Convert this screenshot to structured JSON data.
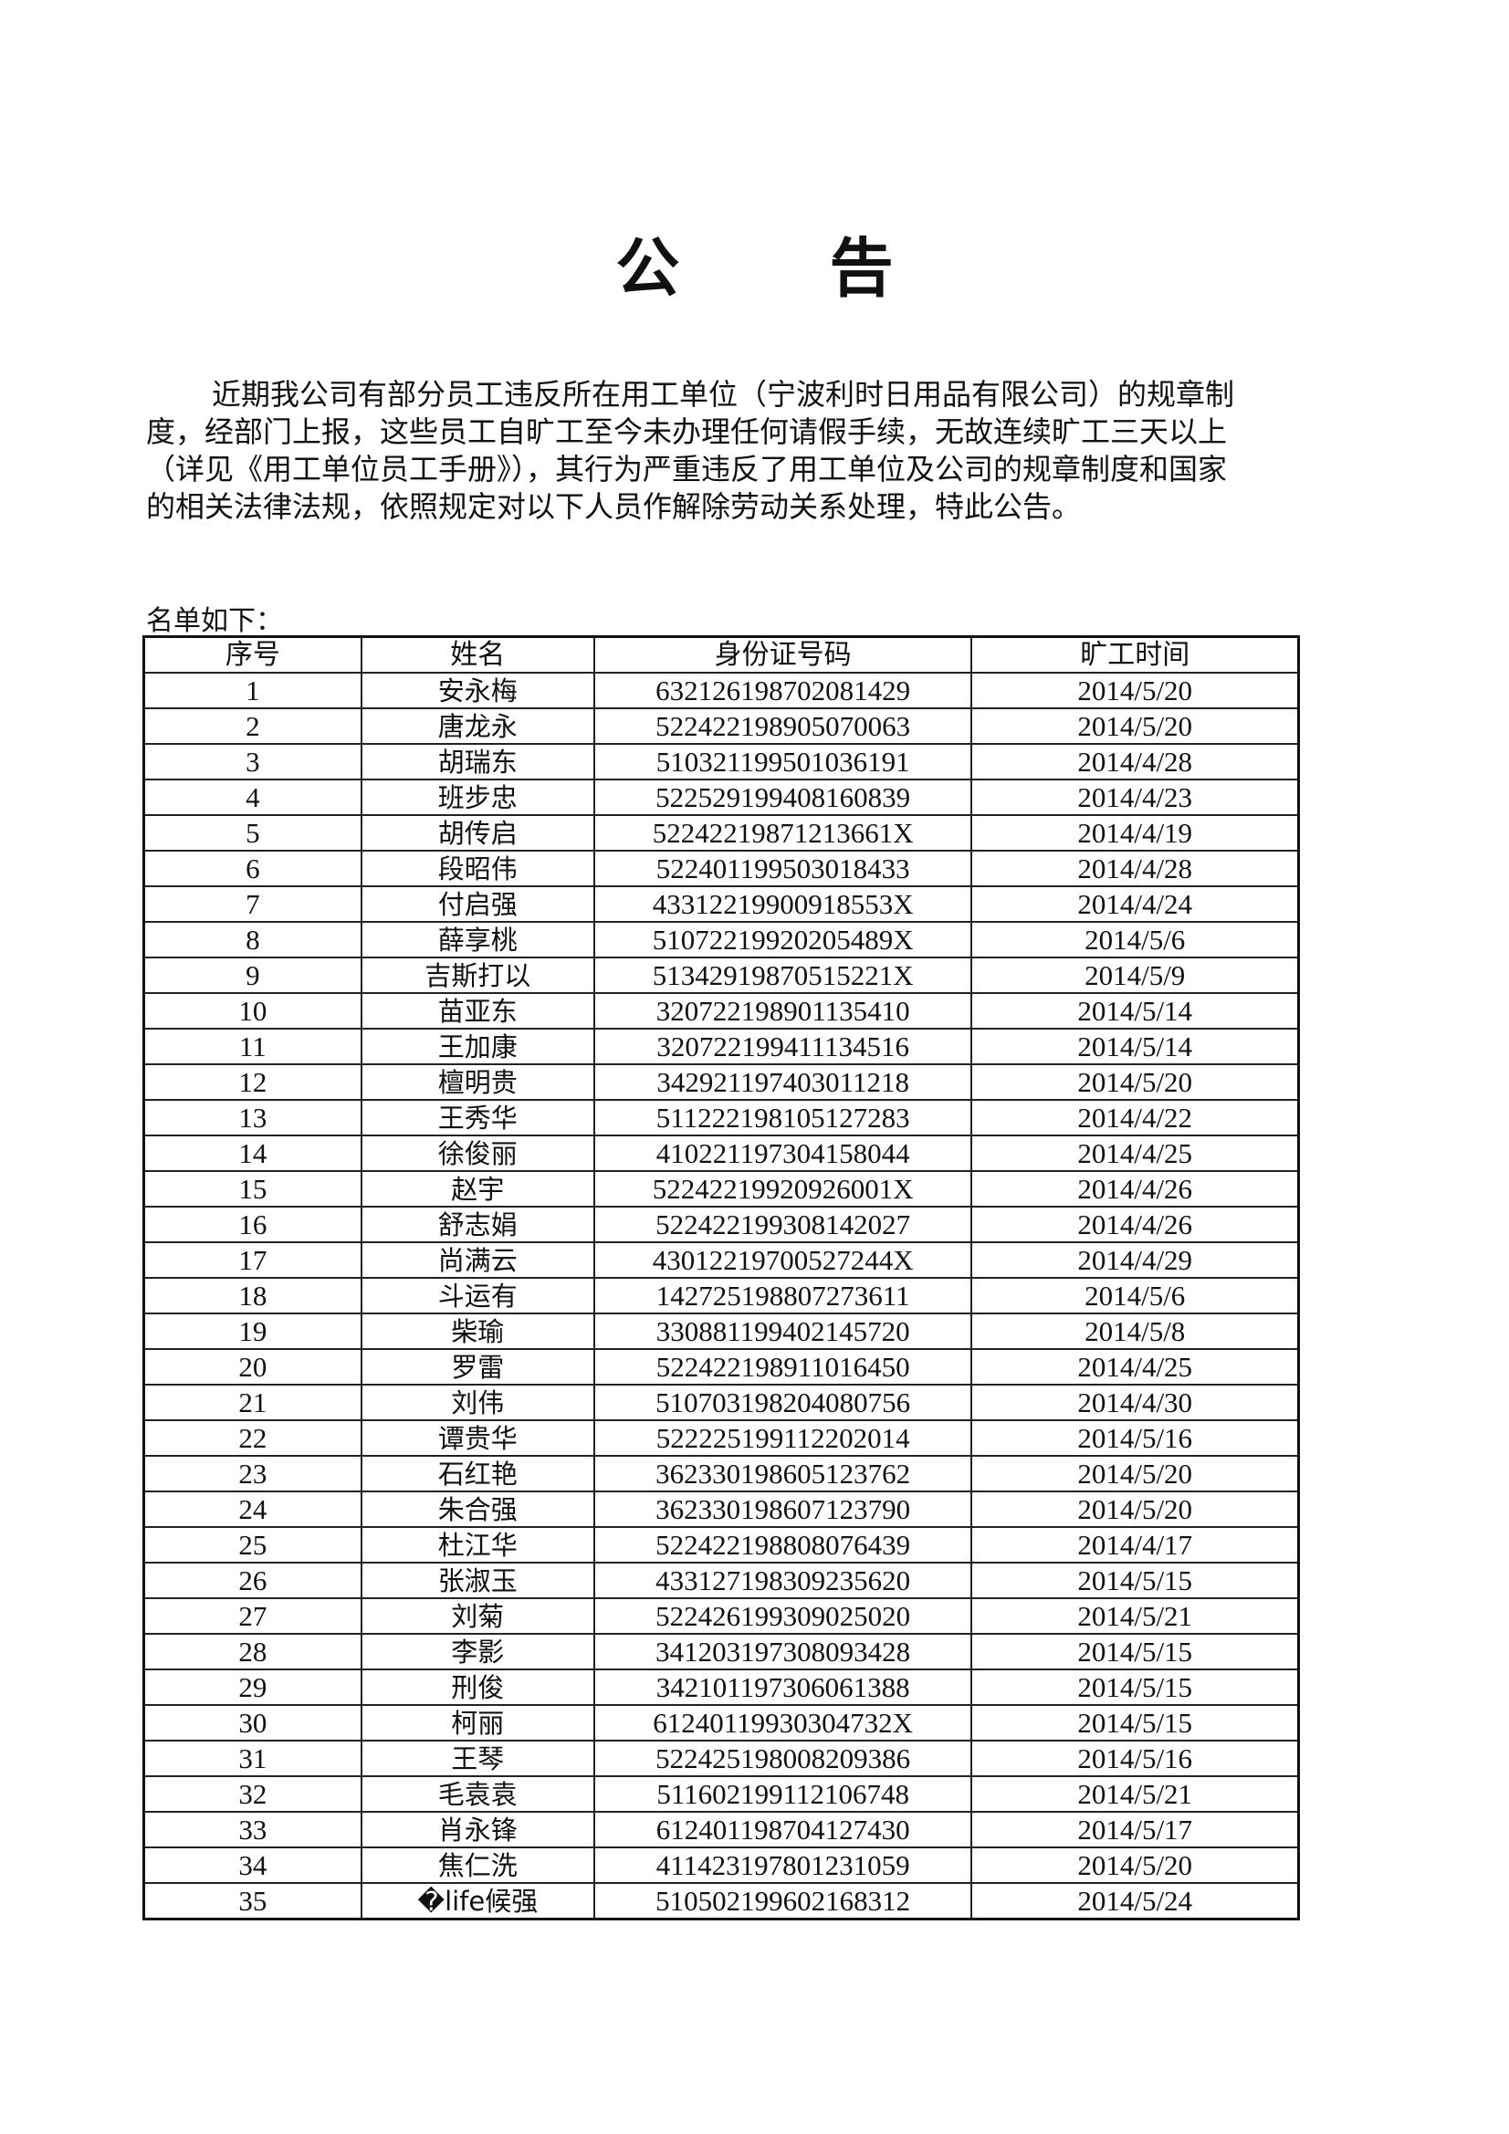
{
  "title": "公 告",
  "paragraph_lines": [
    "近期我公司有部分员工违反所在用工单位（宁波利时日用品有限公司）的规章制",
    "度，经部门上报，这些员工自旷工至今未办理任何请假手续，无故连续旷工三天以上",
    "（详见《用工单位员工手册》），其行为严重违反了用工单位及公司的规章制度和国家",
    "的相关法律法规，依照规定对以下人员作解除劳动关系处理，特此公告。"
  ],
  "list_label": "名单如下：",
  "table": {
    "headers": [
      "序号",
      "姓名",
      "身份证号码",
      "旷工时间"
    ],
    "rows": [
      [
        "1",
        "安永梅",
        "632126198702081429",
        "2014/5/20"
      ],
      [
        "2",
        "唐龙永",
        "522422198905070063",
        "2014/5/20"
      ],
      [
        "3",
        "胡瑞东",
        "510321199501036191",
        "2014/4/28"
      ],
      [
        "4",
        "班步忠",
        "522529199408160839",
        "2014/4/23"
      ],
      [
        "5",
        "胡传启",
        "52242219871213661X",
        "2014/4/19"
      ],
      [
        "6",
        "段昭伟",
        "522401199503018433",
        "2014/4/28"
      ],
      [
        "7",
        "付启强",
        "43312219900918553X",
        "2014/4/24"
      ],
      [
        "8",
        "薛享桃",
        "51072219920205489X",
        "2014/5/6"
      ],
      [
        "9",
        "吉斯打以",
        "51342919870515221X",
        "2014/5/9"
      ],
      [
        "10",
        "苗亚东",
        "320722198901135410",
        "2014/5/14"
      ],
      [
        "11",
        "王加康",
        "320722199411134516",
        "2014/5/14"
      ],
      [
        "12",
        "檀明贵",
        "342921197403011218",
        "2014/5/20"
      ],
      [
        "13",
        "王秀华",
        "511222198105127283",
        "2014/4/22"
      ],
      [
        "14",
        "徐俊丽",
        "410221197304158044",
        "2014/4/25"
      ],
      [
        "15",
        "赵宇",
        "52242219920926001X",
        "2014/4/26"
      ],
      [
        "16",
        "舒志娟",
        "522422199308142027",
        "2014/4/26"
      ],
      [
        "17",
        "尚满云",
        "43012219700527244X",
        "2014/4/29"
      ],
      [
        "18",
        "斗运有",
        "142725198807273611",
        "2014/5/6"
      ],
      [
        "19",
        "柴瑜",
        "330881199402145720",
        "2014/5/8"
      ],
      [
        "20",
        "罗雷",
        "522422198911016450",
        "2014/4/25"
      ],
      [
        "21",
        "刘伟",
        "510703198204080756",
        "2014/4/30"
      ],
      [
        "22",
        "谭贵华",
        "522225199112202014",
        "2014/5/16"
      ],
      [
        "23",
        "石红艳",
        "362330198605123762",
        "2014/5/20"
      ],
      [
        "24",
        "朱合强",
        "362330198607123790",
        "2014/5/20"
      ],
      [
        "25",
        "杜江华",
        "522422198808076439",
        "2014/4/17"
      ],
      [
        "26",
        "张淑玉",
        "433127198309235620",
        "2014/5/15"
      ],
      [
        "27",
        "刘菊",
        "522426199309025020",
        "2014/5/21"
      ],
      [
        "28",
        "李影",
        "341203197308093428",
        "2014/5/15"
      ],
      [
        "29",
        "刑俊",
        "342101197306061388",
        "2014/5/15"
      ],
      [
        "30",
        "柯丽",
        "61240119930304732X",
        "2014/5/15"
      ],
      [
        "31",
        "王琴",
        "522425198008209386",
        "2014/5/16"
      ],
      [
        "32",
        "毛袁袁",
        "511602199112106748",
        "2014/5/21"
      ],
      [
        "33",
        "肖永锋",
        "612401198704127430",
        "2014/5/17"
      ],
      [
        "34",
        "焦仁洗",
        "411423197801231059",
        "2014/5/20"
      ],
      [
        "35",
        "�life候强",
        "510502199602168312",
        "2014/5/24"
      ]
    ]
  }
}
